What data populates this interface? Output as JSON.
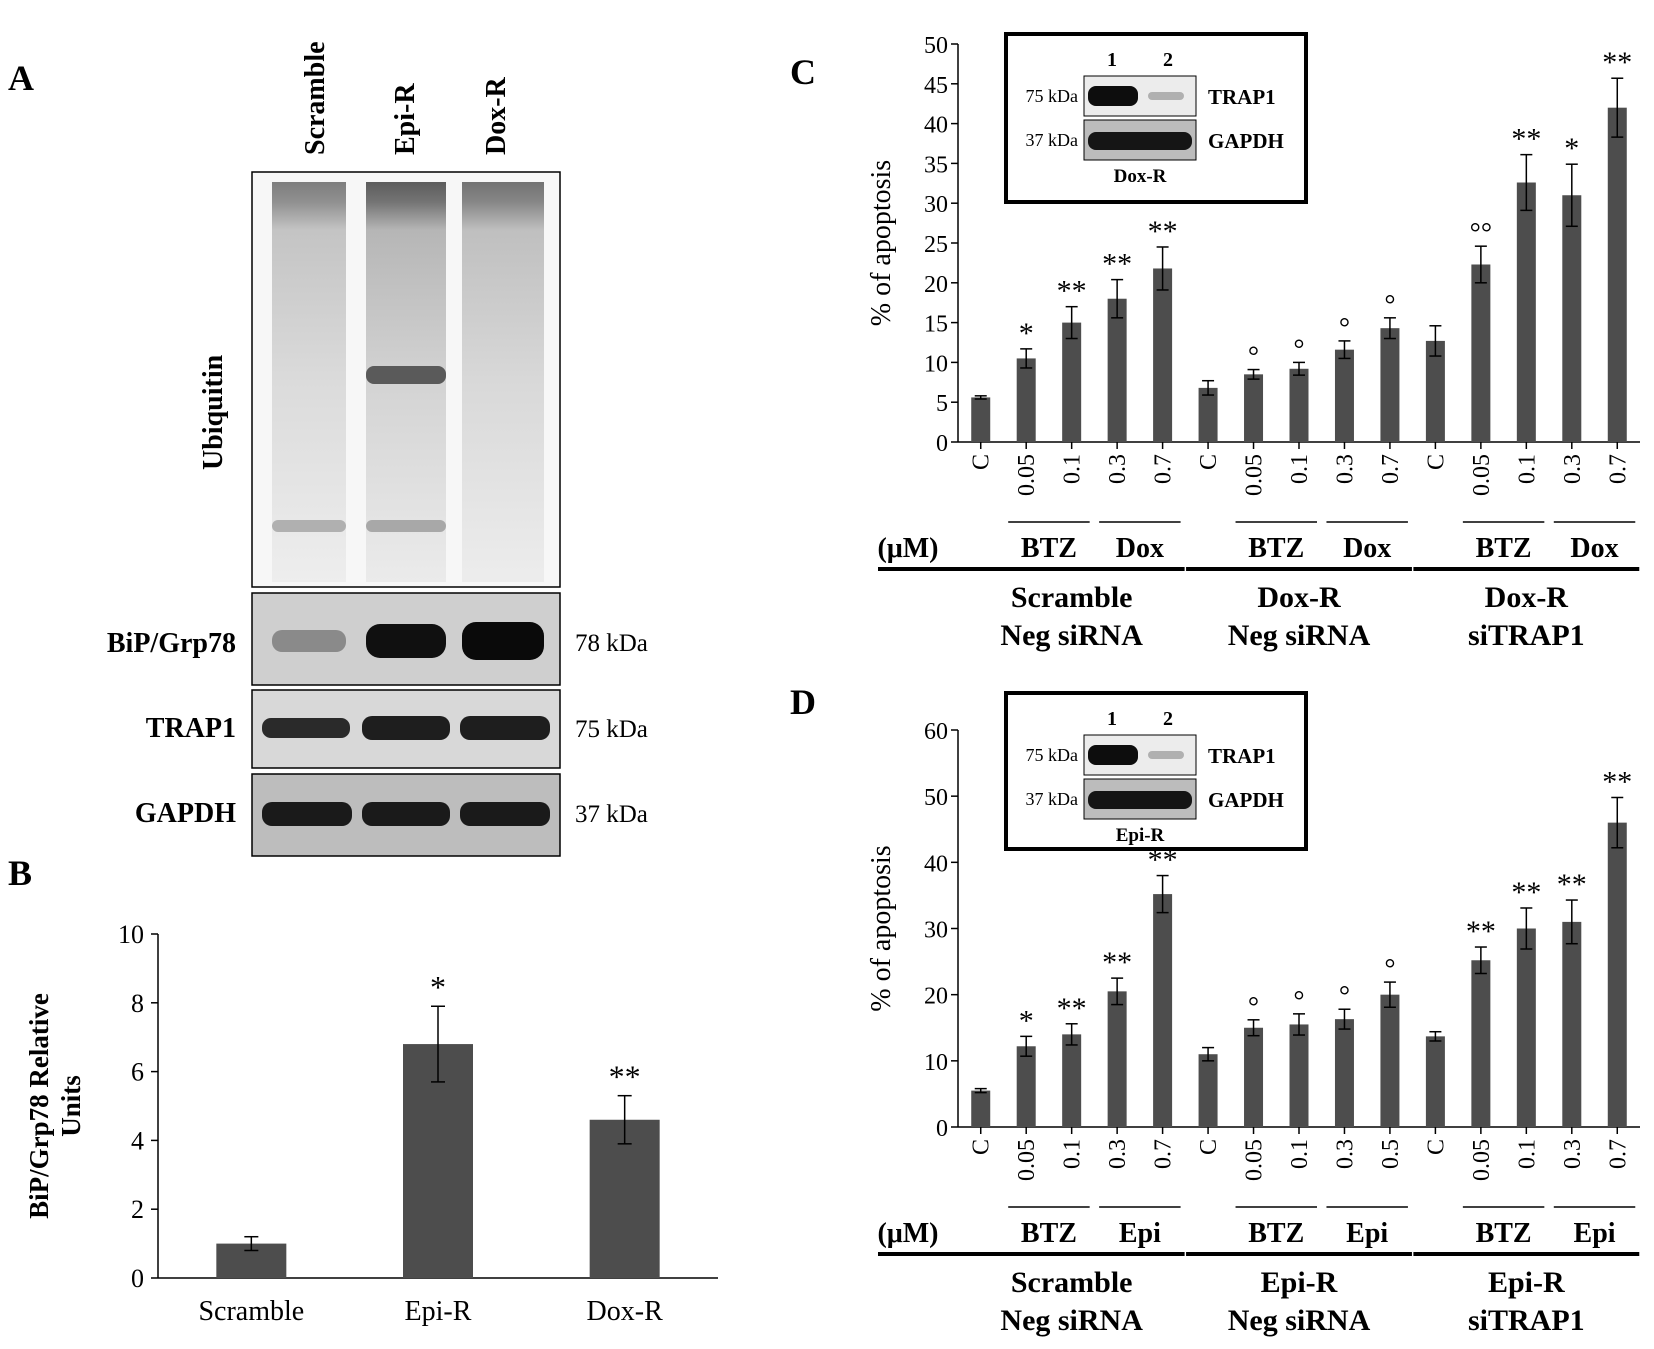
{
  "panelA": {
    "letter": "A",
    "lane_labels": [
      "Scramble",
      "Epi-R",
      "Dox-R"
    ],
    "blots": [
      {
        "label": "Ubiquitin",
        "kda": ""
      },
      {
        "label": "BiP/Grp78",
        "kda": "78 kDa"
      },
      {
        "label": "TRAP1",
        "kda": "75 kDa"
      },
      {
        "label": "GAPDH",
        "kda": "37 kDa"
      }
    ]
  },
  "chart_data": [
    {
      "panel": "B",
      "type": "bar",
      "categories": [
        "Scramble",
        "Epi-R",
        "Dox-R"
      ],
      "series": [
        {
          "values": [
            1.0,
            6.8,
            4.6
          ],
          "errors": [
            0.2,
            1.1,
            0.7
          ]
        }
      ],
      "significance": [
        "",
        "*",
        "**"
      ],
      "ylabel": "BiP/Grp78 Relative Units",
      "ylim": [
        0,
        10
      ],
      "yticks": [
        "0",
        "2",
        "4",
        "6",
        "8",
        "10"
      ],
      "bar_color": "#4d4d4d",
      "grid": false
    },
    {
      "panel": "C",
      "type": "bar",
      "ylabel": "% of apoptosis",
      "ylim": [
        0,
        50
      ],
      "yticks": [
        "0",
        "5",
        "10",
        "15",
        "20",
        "25",
        "30",
        "35",
        "40",
        "45",
        "50"
      ],
      "bar_color": "#4d4d4d",
      "grid": false,
      "unit_label": "(μM)",
      "dose_labels": [
        "C",
        "0.05",
        "0.1",
        "0.3",
        "0.7",
        "C",
        "0.05",
        "0.1",
        "0.3",
        "0.7",
        "C",
        "0.05",
        "0.1",
        "0.3",
        "0.7"
      ],
      "values": [
        5.6,
        10.5,
        15.0,
        18.0,
        21.8,
        6.8,
        8.5,
        9.2,
        11.6,
        14.3,
        12.7,
        22.3,
        32.6,
        31.0,
        42.0
      ],
      "errors": [
        0.2,
        1.2,
        2.0,
        2.4,
        2.7,
        0.9,
        0.6,
        0.8,
        1.1,
        1.3,
        1.9,
        2.3,
        3.5,
        3.9,
        3.7
      ],
      "marks": [
        "",
        "*",
        "**",
        "**",
        "**",
        "",
        "°",
        "°",
        "°",
        "°",
        "",
        "°°",
        "**",
        "*",
        "**"
      ],
      "drug_groups": [
        "BTZ",
        "Dox",
        "BTZ",
        "Dox",
        "BTZ",
        "Dox"
      ],
      "groups": [
        {
          "line1": "Scramble",
          "line2": "Neg siRNA"
        },
        {
          "line1": "Dox-R",
          "line2": "Neg siRNA"
        },
        {
          "line1": "Dox-R",
          "line2": "siTRAP1"
        }
      ],
      "inset": {
        "lanes": [
          "1",
          "2"
        ],
        "kda": [
          "75 kDa",
          "37 kDa"
        ],
        "proteins": [
          "TRAP1",
          "GAPDH"
        ],
        "cell": "Dox-R"
      }
    },
    {
      "panel": "D",
      "type": "bar",
      "ylabel": "% of apoptosis",
      "ylim": [
        0,
        60
      ],
      "yticks": [
        "0",
        "10",
        "20",
        "30",
        "40",
        "50",
        "60"
      ],
      "bar_color": "#4d4d4d",
      "grid": false,
      "unit_label": "(μM)",
      "dose_labels": [
        "C",
        "0.05",
        "0.1",
        "0.3",
        "0.7",
        "C",
        "0.05",
        "0.1",
        "0.3",
        "0.5",
        "C",
        "0.05",
        "0.1",
        "0.3",
        "0.7"
      ],
      "values": [
        5.5,
        12.2,
        14.0,
        20.5,
        35.2,
        11.0,
        15.0,
        15.5,
        16.3,
        20.0,
        13.7,
        25.2,
        30.0,
        31.0,
        46.0
      ],
      "errors": [
        0.3,
        1.5,
        1.6,
        2.0,
        2.8,
        1.0,
        1.2,
        1.6,
        1.5,
        1.9,
        0.7,
        2.0,
        3.1,
        3.3,
        3.8
      ],
      "marks": [
        "",
        "*",
        "**",
        "**",
        "**",
        "",
        "°",
        "°",
        "°",
        "°",
        "",
        "**",
        "**",
        "**",
        "**"
      ],
      "drug_groups": [
        "BTZ",
        "Epi",
        "BTZ",
        "Epi",
        "BTZ",
        "Epi"
      ],
      "groups": [
        {
          "line1": "Scramble",
          "line2": "Neg siRNA"
        },
        {
          "line1": "Epi-R",
          "line2": "Neg siRNA"
        },
        {
          "line1": "Epi-R",
          "line2": "siTRAP1"
        }
      ],
      "inset": {
        "lanes": [
          "1",
          "2"
        ],
        "kda": [
          "75 kDa",
          "37 kDa"
        ],
        "proteins": [
          "TRAP1",
          "GAPDH"
        ],
        "cell": "Epi-R"
      }
    }
  ]
}
